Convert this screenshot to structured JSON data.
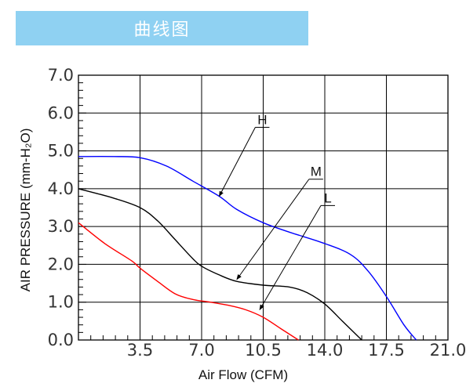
{
  "header": {
    "title": "曲线图"
  },
  "chart_data": {
    "type": "line",
    "xlabel": "Air Flow (CFM)",
    "ylabel": "AIR PRESSURE (mm-H₂O)",
    "xlim": [
      0,
      21
    ],
    "ylim": [
      0,
      7
    ],
    "x_ticks": [
      "3.5",
      "7.0",
      "10.5",
      "14.0",
      "17.5",
      "21.0"
    ],
    "y_ticks": [
      "0.0",
      "1.0",
      "2.0",
      "3.0",
      "4.0",
      "5.0",
      "6.0",
      "7.0"
    ],
    "grid": true,
    "series": [
      {
        "name": "H",
        "color": "#0000ff",
        "x": [
          0,
          2,
          3.5,
          5,
          6.5,
          8,
          9,
          10.5,
          12,
          14,
          15.5,
          16.5,
          17.5,
          18.5,
          19.2
        ],
        "y": [
          4.85,
          4.85,
          4.82,
          4.6,
          4.2,
          3.8,
          3.45,
          3.1,
          2.85,
          2.55,
          2.25,
          1.8,
          1.15,
          0.4,
          0
        ]
      },
      {
        "name": "M",
        "color": "#000000",
        "x": [
          0,
          2,
          3.5,
          4.5,
          5.5,
          6.5,
          7.0,
          8,
          9,
          10.5,
          12,
          13,
          14,
          15,
          16.1
        ],
        "y": [
          4.0,
          3.75,
          3.5,
          3.15,
          2.65,
          2.15,
          1.95,
          1.72,
          1.55,
          1.45,
          1.4,
          1.25,
          0.95,
          0.5,
          0
        ]
      },
      {
        "name": "L",
        "color": "#ff0000",
        "x": [
          0,
          1.5,
          3.0,
          3.5,
          4.5,
          5.5,
          6.5,
          7.5,
          8.5,
          9.5,
          10.5,
          11.5,
          12.5
        ],
        "y": [
          3.1,
          2.55,
          2.1,
          1.9,
          1.55,
          1.22,
          1.07,
          1.0,
          0.92,
          0.8,
          0.6,
          0.3,
          0
        ]
      }
    ],
    "annotations": [
      {
        "text": "H",
        "target": [
          8.0,
          3.8
        ]
      },
      {
        "text": "M",
        "target": [
          9.0,
          1.6
        ]
      },
      {
        "text": "L",
        "target": [
          10.3,
          0.8
        ]
      }
    ]
  }
}
